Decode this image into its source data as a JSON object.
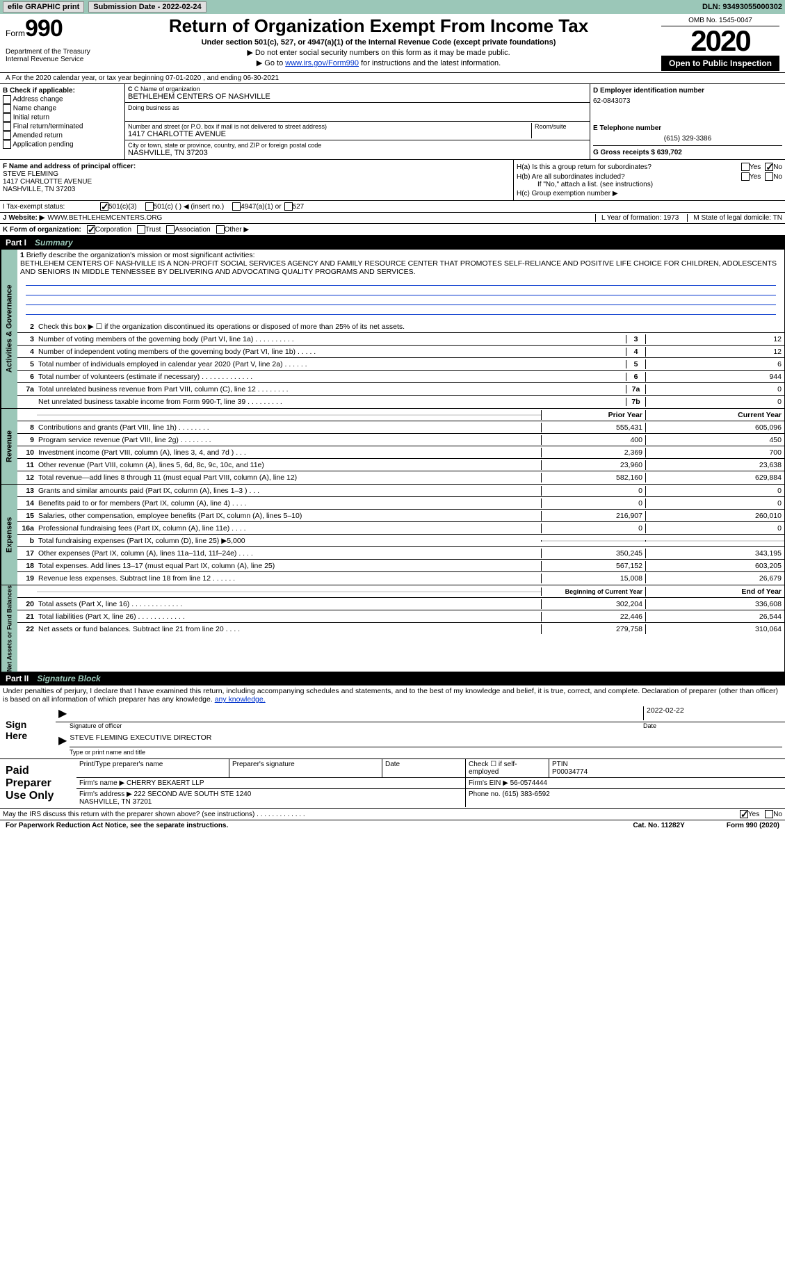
{
  "topbar": {
    "efile": "efile GRAPHIC print",
    "sub_label": "Submission Date - 2022-02-24",
    "dln": "DLN: 93493055000302"
  },
  "header": {
    "form_word": "Form",
    "form_num": "990",
    "dept": "Department of the Treasury\nInternal Revenue Service",
    "title": "Return of Organization Exempt From Income Tax",
    "subtitle": "Under section 501(c), 527, or 4947(a)(1) of the Internal Revenue Code (except private foundations)",
    "note1": "▶ Do not enter social security numbers on this form as it may be made public.",
    "note2_pre": "▶ Go to ",
    "note2_link": "www.irs.gov/Form990",
    "note2_post": " for instructions and the latest information.",
    "omb": "OMB No. 1545-0047",
    "year": "2020",
    "open": "Open to Public Inspection"
  },
  "line_a": "A For the 2020 calendar year, or tax year beginning 07-01-2020     , and ending 06-30-2021",
  "section_b": {
    "hdr": "B Check if applicable:",
    "items": [
      "Address change",
      "Name change",
      "Initial return",
      "Final return/terminated",
      "Amended return",
      "Application pending"
    ]
  },
  "section_c": {
    "name_lbl": "C Name of organization",
    "name": "BETHLEHEM CENTERS OF NASHVILLE",
    "dba_lbl": "Doing business as",
    "addr_lbl": "Number and street (or P.O. box if mail is not delivered to street address)",
    "addr": "1417 CHARLOTTE AVENUE",
    "room_lbl": "Room/suite",
    "city_lbl": "City or town, state or province, country, and ZIP or foreign postal code",
    "city": "NASHVILLE, TN  37203"
  },
  "section_d": {
    "lbl": "D Employer identification number",
    "val": "62-0843073"
  },
  "section_e": {
    "lbl": "E Telephone number",
    "val": "(615) 329-3386"
  },
  "section_g": {
    "lbl": "G Gross receipts $ 639,702"
  },
  "section_f": {
    "lbl": "F  Name and address of principal officer:",
    "name": "STEVE FLEMING",
    "addr1": "1417 CHARLOTTE AVENUE",
    "addr2": "NASHVILLE, TN  37203"
  },
  "section_h": {
    "ha": "H(a)  Is this a group return for subordinates?",
    "hb": "H(b)  Are all subordinates included?",
    "hb_note": "If \"No,\" attach a list. (see instructions)",
    "hc": "H(c)  Group exemption number ▶",
    "yes": "Yes",
    "no": "No"
  },
  "row_i": {
    "lbl": "I    Tax-exempt status:",
    "opts": [
      "501(c)(3)",
      "501(c) (  ) ◀ (insert no.)",
      "4947(a)(1) or",
      "527"
    ]
  },
  "row_j": {
    "lbl": "J   Website: ▶",
    "val": "WWW.BETHLEHEMCENTERS.ORG"
  },
  "row_k": {
    "lbl": "K Form of organization:",
    "opts": [
      "Corporation",
      "Trust",
      "Association",
      "Other ▶"
    ]
  },
  "row_l": "L Year of formation: 1973",
  "row_m": "M State of legal domicile: TN",
  "part1": {
    "num": "Part I",
    "title": "Summary"
  },
  "mission": {
    "n": "1",
    "lbl": "Briefly describe the organization's mission or most significant activities:",
    "text": "BETHLEHEM CENTERS OF NASHVILLE IS A NON-PROFIT SOCIAL SERVICES AGENCY AND FAMILY RESOURCE CENTER THAT PROMOTES SELF-RELIANCE AND POSITIVE LIFE CHOICE FOR CHILDREN, ADOLESCENTS AND SENIORS IN MIDDLE TENNESSEE BY DELIVERING AND ADVOCATING QUALITY PROGRAMS AND SERVICES."
  },
  "gov_rows": [
    {
      "n": "2",
      "d": "Check this box ▶ ☐  if the organization discontinued its operations or disposed of more than 25% of its net assets."
    },
    {
      "n": "3",
      "d": "Number of voting members of the governing body (Part VI, line 1a)    .    .    .    .    .    .    .    .    .    .",
      "b": "3",
      "v": "12"
    },
    {
      "n": "4",
      "d": "Number of independent voting members of the governing body (Part VI, line 1b)    .    .    .    .    .",
      "b": "4",
      "v": "12"
    },
    {
      "n": "5",
      "d": "Total number of individuals employed in calendar year 2020 (Part V, line 2a)    .    .    .    .    .    .",
      "b": "5",
      "v": "6"
    },
    {
      "n": "6",
      "d": "Total number of volunteers (estimate if necessary)    .    .    .    .    .    .    .    .    .    .    .    .    .",
      "b": "6",
      "v": "944"
    },
    {
      "n": "7a",
      "d": "Total unrelated business revenue from Part VIII, column (C), line 12    .    .    .    .    .    .    .    .",
      "b": "7a",
      "v": "0"
    },
    {
      "n": "",
      "d": "Net unrelated business taxable income from Form 990-T, line 39    .    .    .    .    .    .    .    .    .",
      "b": "7b",
      "v": "0"
    }
  ],
  "rev_hdr": {
    "py": "Prior Year",
    "cy": "Current Year"
  },
  "rev_rows": [
    {
      "n": "8",
      "d": "Contributions and grants (Part VIII, line 1h)    .    .    .    .    .    .    .    .",
      "p": "555,431",
      "c": "605,096"
    },
    {
      "n": "9",
      "d": "Program service revenue (Part VIII, line 2g)    .    .    .    .    .    .    .    .",
      "p": "400",
      "c": "450"
    },
    {
      "n": "10",
      "d": "Investment income (Part VIII, column (A), lines 3, 4, and 7d )    .    .    .",
      "p": "2,369",
      "c": "700"
    },
    {
      "n": "11",
      "d": "Other revenue (Part VIII, column (A), lines 5, 6d, 8c, 9c, 10c, and 11e)",
      "p": "23,960",
      "c": "23,638"
    },
    {
      "n": "12",
      "d": "Total revenue—add lines 8 through 11 (must equal Part VIII, column (A), line 12)",
      "p": "582,160",
      "c": "629,884"
    }
  ],
  "exp_rows": [
    {
      "n": "13",
      "d": "Grants and similar amounts paid (Part IX, column (A), lines 1–3 )    .    .    .",
      "p": "0",
      "c": "0"
    },
    {
      "n": "14",
      "d": "Benefits paid to or for members (Part IX, column (A), line 4)    .    .    .    .",
      "p": "0",
      "c": "0"
    },
    {
      "n": "15",
      "d": "Salaries, other compensation, employee benefits (Part IX, column (A), lines 5–10)",
      "p": "216,907",
      "c": "260,010"
    },
    {
      "n": "16a",
      "d": "Professional fundraising fees (Part IX, column (A), line 11e)    .    .    .    .",
      "p": "0",
      "c": "0"
    },
    {
      "n": "b",
      "d": "Total fundraising expenses (Part IX, column (D), line 25) ▶5,000",
      "p": "",
      "c": "",
      "gray": true
    },
    {
      "n": "17",
      "d": "Other expenses (Part IX, column (A), lines 11a–11d, 11f–24e)    .    .    .    .",
      "p": "350,245",
      "c": "343,195"
    },
    {
      "n": "18",
      "d": "Total expenses. Add lines 13–17 (must equal Part IX, column (A), line 25)",
      "p": "567,152",
      "c": "603,205"
    },
    {
      "n": "19",
      "d": "Revenue less expenses. Subtract line 18 from line 12    .    .    .    .    .    .",
      "p": "15,008",
      "c": "26,679"
    }
  ],
  "na_hdr": {
    "py": "Beginning of Current Year",
    "cy": "End of Year"
  },
  "na_rows": [
    {
      "n": "20",
      "d": "Total assets (Part X, line 16)    .    .    .    .    .    .    .    .    .    .    .    .    .",
      "p": "302,204",
      "c": "336,608"
    },
    {
      "n": "21",
      "d": "Total liabilities (Part X, line 26)    .    .    .    .    .    .    .    .    .    .    .    .",
      "p": "22,446",
      "c": "26,544"
    },
    {
      "n": "22",
      "d": "Net assets or fund balances. Subtract line 21 from line 20    .    .    .    .",
      "p": "279,758",
      "c": "310,064"
    }
  ],
  "part2": {
    "num": "Part II",
    "title": "Signature Block"
  },
  "penalties": "Under penalties of perjury, I declare that I have examined this return, including accompanying schedules and statements, and to the best of my knowledge and belief, it is true, correct, and complete. Declaration of preparer (other than officer) is based on all information of which preparer has any knowledge.",
  "sign": {
    "here": "Sign Here",
    "sig_lbl": "Signature of officer",
    "date_lbl": "Date",
    "date": "2022-02-22",
    "name": "STEVE FLEMING  EXECUTIVE DIRECTOR",
    "name_lbl": "Type or print name and title"
  },
  "paid": {
    "title": "Paid Preparer Use Only",
    "print_lbl": "Print/Type preparer's name",
    "sig_lbl": "Preparer's signature",
    "date_lbl": "Date",
    "check_lbl": "Check ☐ if self-employed",
    "ptin_lbl": "PTIN",
    "ptin": "P00034774",
    "firm_name_lbl": "Firm's name    ▶",
    "firm_name": "CHERRY BEKAERT LLP",
    "ein_lbl": "Firm's EIN ▶",
    "ein": "56-0574444",
    "addr_lbl": "Firm's address ▶",
    "addr": "222 SECOND AVE SOUTH STE 1240\nNASHVILLE, TN  37201",
    "phone_lbl": "Phone no.",
    "phone": "(615) 383-6592"
  },
  "discuss": "May the IRS discuss this return with the preparer shown above? (see instructions)    .    .    .    .    .    .    .    .    .    .    .    .    .",
  "footer": {
    "pra": "For Paperwork Reduction Act Notice, see the separate instructions.",
    "cat": "Cat. No. 11282Y",
    "form": "Form 990 (2020)"
  },
  "colors": {
    "teal": "#9bc7b8",
    "link": "#0033cc"
  }
}
